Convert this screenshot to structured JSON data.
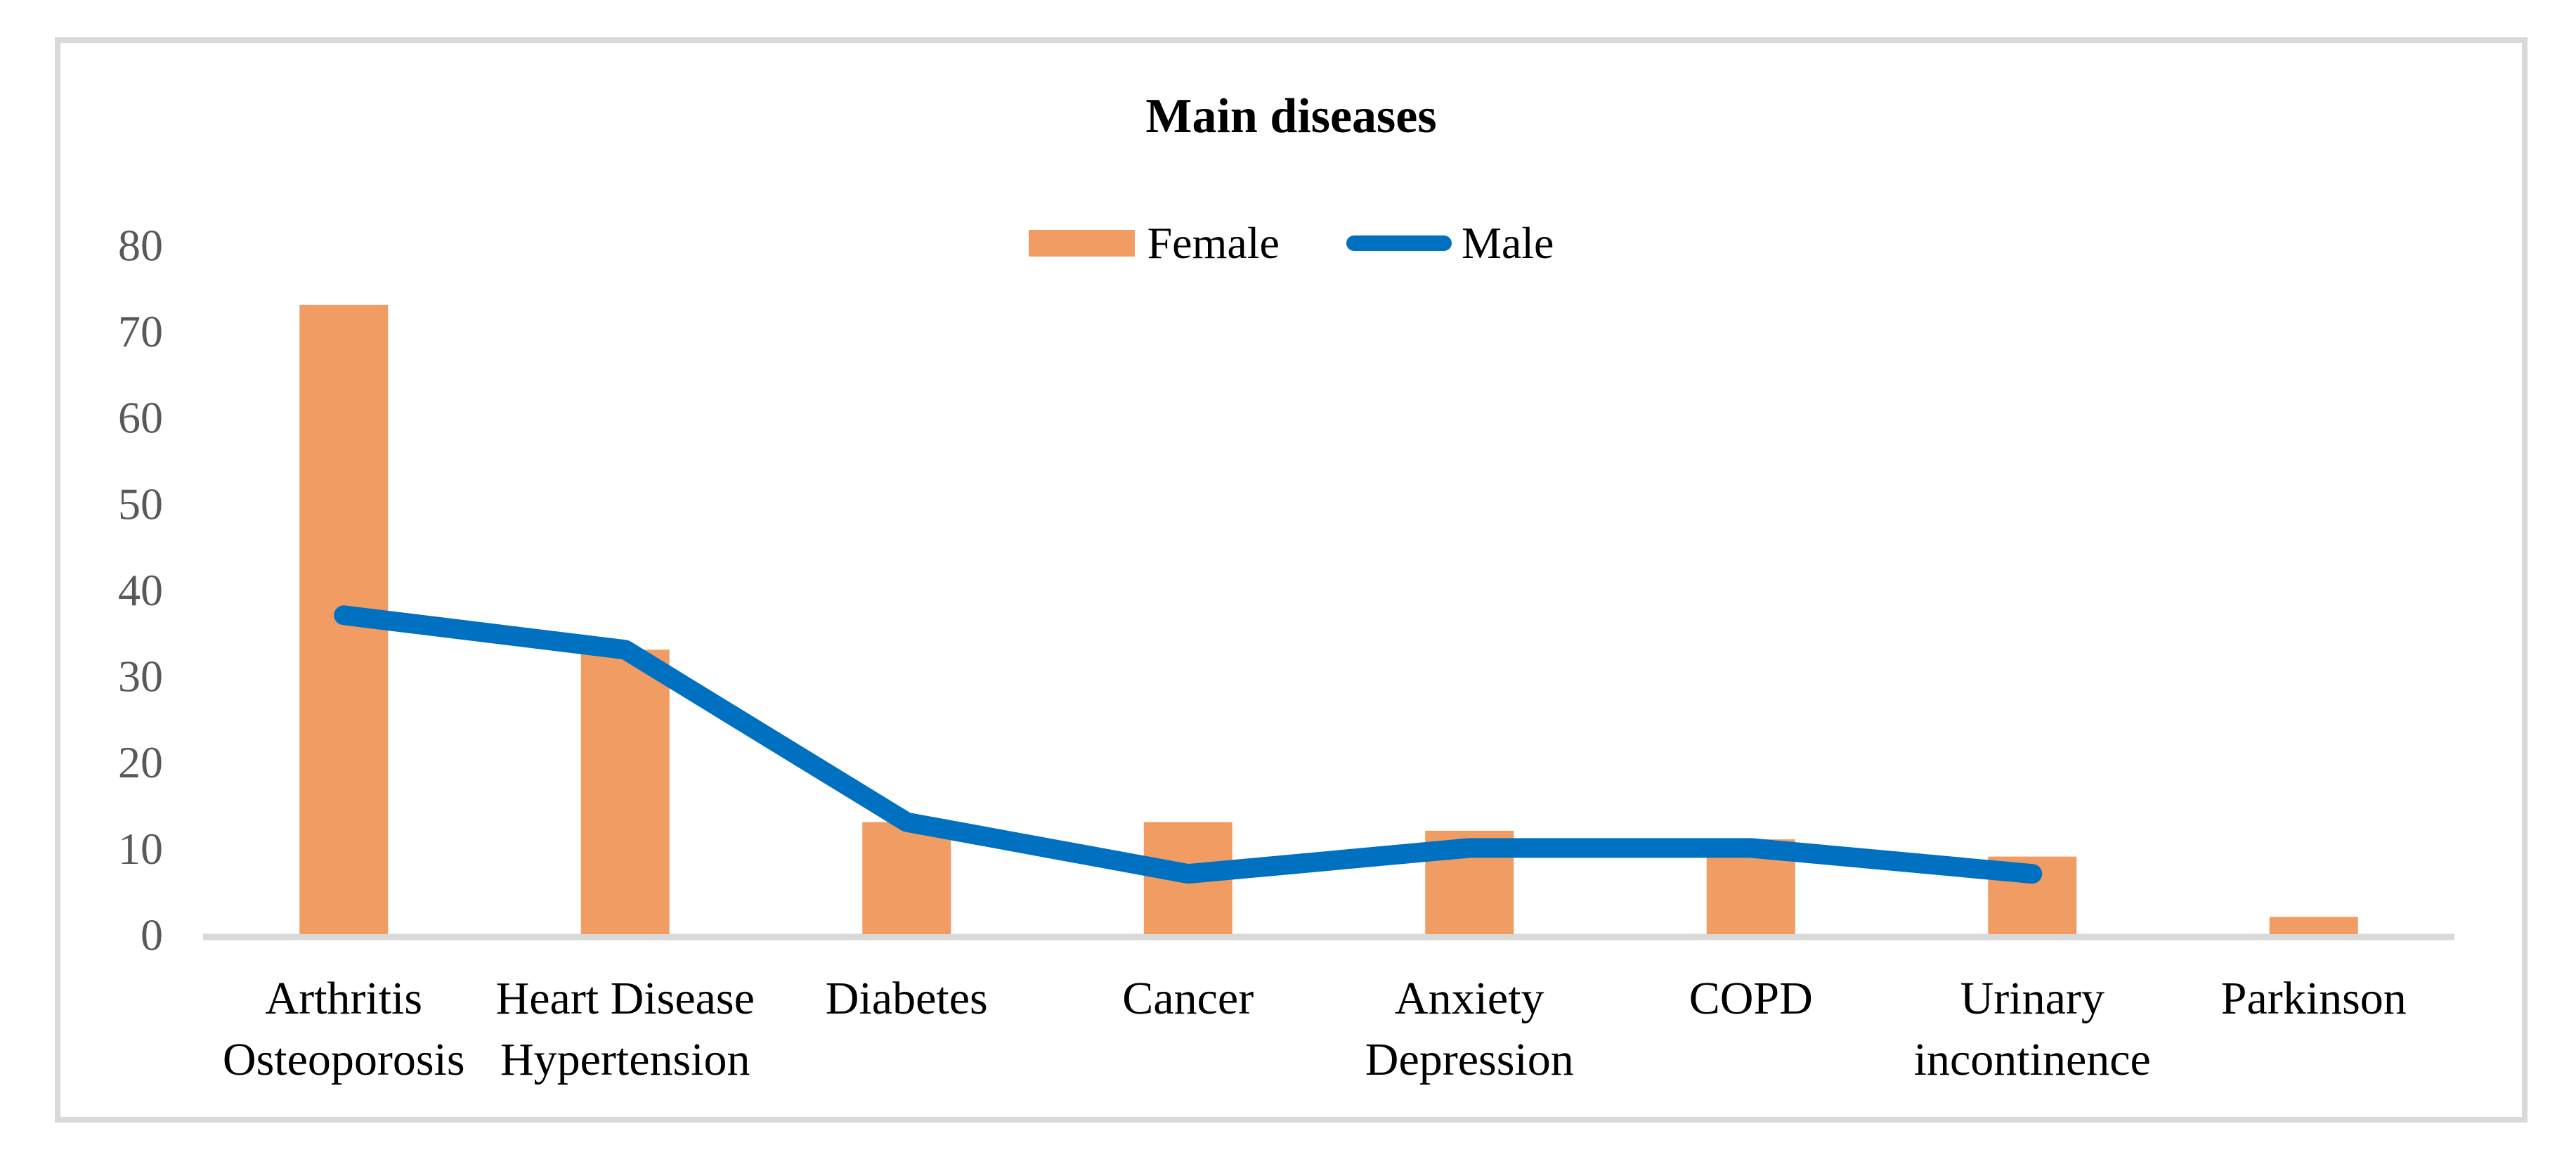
{
  "chart_data": {
    "type": "combo-bar-line",
    "title": "Main diseases",
    "categories": [
      {
        "lines": [
          "Arthritis",
          "Osteoporosis"
        ]
      },
      {
        "lines": [
          "Heart Disease",
          "Hypertension"
        ]
      },
      {
        "lines": [
          "Diabetes"
        ]
      },
      {
        "lines": [
          "Cancer"
        ]
      },
      {
        "lines": [
          "Anxiety",
          "Depression"
        ]
      },
      {
        "lines": [
          "COPD"
        ]
      },
      {
        "lines": [
          "Urinary",
          "incontinence"
        ]
      },
      {
        "lines": [
          "Parkinson"
        ]
      }
    ],
    "series": [
      {
        "name": "Female",
        "type": "bar",
        "color": "#F09C62",
        "values": [
          73,
          33,
          13,
          13,
          12,
          11,
          9,
          2
        ]
      },
      {
        "name": "Male",
        "type": "line",
        "color": "#0070C0",
        "values": [
          37,
          33,
          13,
          7,
          10,
          10,
          7,
          null
        ]
      }
    ],
    "y_axis": {
      "min": 0,
      "max": 80,
      "step": 10,
      "ticks": [
        0,
        10,
        20,
        30,
        40,
        50,
        60,
        70,
        80
      ]
    },
    "xlabel": "",
    "ylabel": "",
    "grid": "off",
    "legend_position": "top-center",
    "colors": {
      "axis_line": "#D9D9D9",
      "frame_border": "#D9D9D9",
      "tick_text": "#595959",
      "label_text": "#000000",
      "background": "#FFFFFF"
    }
  }
}
